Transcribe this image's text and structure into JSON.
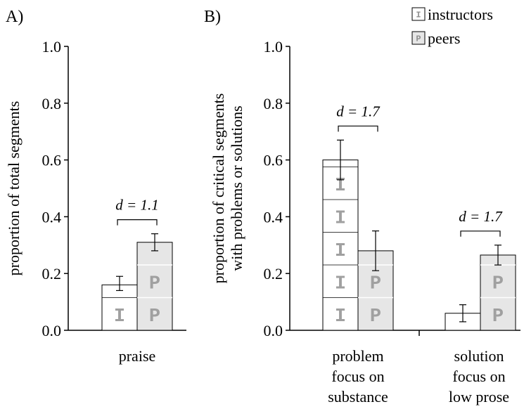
{
  "legend": {
    "position": "top-right",
    "items": [
      {
        "label": "instructors",
        "glyph": "I",
        "fill": "#ffffff"
      },
      {
        "label": "peers",
        "glyph": "P",
        "fill": "#e6e6e6"
      }
    ]
  },
  "chart_data": [
    {
      "panel": "A)",
      "type": "bar",
      "ylabel": "proportion of total segments",
      "ylim": [
        0,
        1.0
      ],
      "yticks": [
        "0.0",
        "0.2",
        "0.4",
        "0.6",
        "0.8",
        "1.0"
      ],
      "categories": [
        "praise"
      ],
      "series": [
        {
          "name": "instructors",
          "values": [
            0.16
          ],
          "err_low": [
            0.14
          ],
          "err_high": [
            0.19
          ]
        },
        {
          "name": "peers",
          "values": [
            0.31
          ],
          "err_low": [
            0.28
          ],
          "err_high": [
            0.34
          ]
        }
      ],
      "annotations": [
        {
          "category": "praise",
          "text": "d = 1.1"
        }
      ],
      "grid": false
    },
    {
      "panel": "B)",
      "type": "bar",
      "ylabel": [
        "proportion of critical segments",
        "with problems or solutions"
      ],
      "ylim": [
        0,
        1.0
      ],
      "yticks": [
        "0.0",
        "0.2",
        "0.4",
        "0.6",
        "0.8",
        "1.0"
      ],
      "categories": [
        [
          "problem",
          "focus on",
          "substance"
        ],
        [
          "solution",
          "focus on",
          "low prose"
        ]
      ],
      "series": [
        {
          "name": "instructors",
          "values": [
            0.6,
            0.06
          ],
          "err_low": [
            0.53,
            0.03
          ],
          "err_high": [
            0.67,
            0.09
          ]
        },
        {
          "name": "peers",
          "values": [
            0.28,
            0.265
          ],
          "err_low": [
            0.21,
            0.23
          ],
          "err_high": [
            0.35,
            0.3
          ]
        }
      ],
      "annotations": [
        {
          "category": "problem focus on substance",
          "text": "d = 1.7"
        },
        {
          "category": "solution focus on low prose",
          "text": "d = 1.7"
        }
      ],
      "grid": false
    }
  ]
}
